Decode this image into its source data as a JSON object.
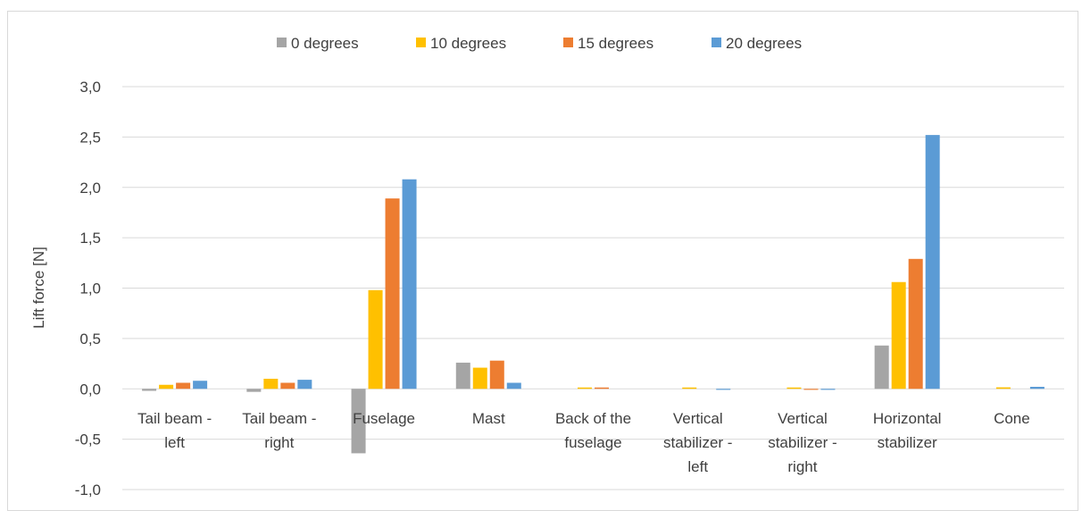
{
  "chart_data": {
    "type": "bar",
    "title": "",
    "xlabel": "",
    "ylabel": "Lift force [N]",
    "ylim": [
      -1.0,
      3.0
    ],
    "ytick_step": 0.5,
    "ytick_labels": [
      "-1,0",
      "-0,5",
      "0,0",
      "0,5",
      "1,0",
      "1,5",
      "2,0",
      "2,5",
      "3,0"
    ],
    "grid": true,
    "legend_position": "top",
    "categories": [
      [
        "Tail beam -",
        "left"
      ],
      [
        "Tail beam -",
        "right"
      ],
      [
        "Fuselage"
      ],
      [
        "Mast"
      ],
      [
        "Back of the",
        "fuselage"
      ],
      [
        "Vertical",
        "stabilizer -",
        "left"
      ],
      [
        "Vertical",
        "stabilizer -",
        "right"
      ],
      [
        "Horizontal",
        "stabilizer"
      ],
      [
        "Cone"
      ]
    ],
    "series": [
      {
        "name": "0 degrees",
        "color": "#a5a5a5",
        "values": [
          -0.02,
          -0.03,
          -0.64,
          0.26,
          0.0,
          0.0,
          0.0,
          0.43,
          0.0
        ]
      },
      {
        "name": "10 degrees",
        "color": "#ffc000",
        "values": [
          0.04,
          0.1,
          0.98,
          0.21,
          0.005,
          0.003,
          0.003,
          1.06,
          0.015
        ]
      },
      {
        "name": "15 degrees",
        "color": "#ed7d31",
        "values": [
          0.06,
          0.06,
          1.89,
          0.28,
          0.005,
          0.0,
          -0.01,
          1.29,
          0.0
        ]
      },
      {
        "name": "20 degrees",
        "color": "#5b9bd5",
        "values": [
          0.08,
          0.09,
          2.08,
          0.06,
          0.0,
          -0.01,
          -0.01,
          2.52,
          0.02
        ]
      }
    ]
  }
}
